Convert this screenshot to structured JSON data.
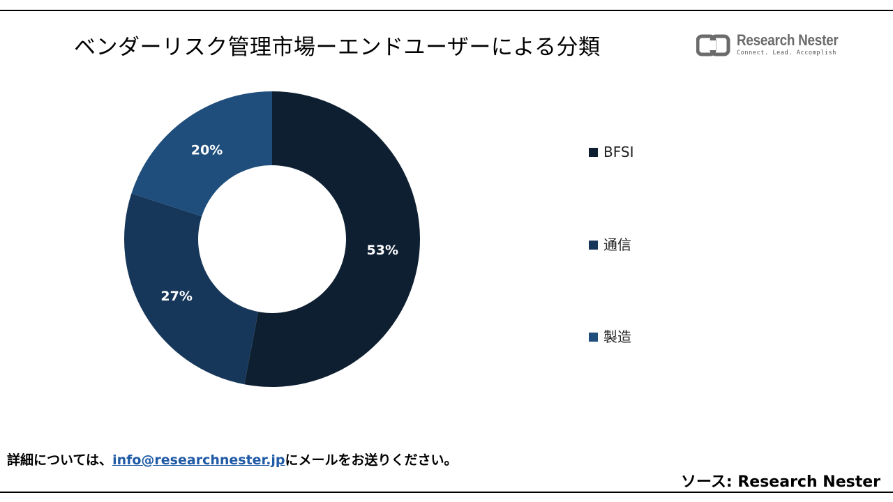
{
  "header": {
    "title": "ベンダーリスク管理市場ーエンドユーザーによる分類"
  },
  "logo": {
    "name": "Research Nester",
    "tagline": "Connect. Lead. Accomplish",
    "icon": "research-nester-logo-icon"
  },
  "chart_data": {
    "type": "pie",
    "donut": true,
    "title": "ベンダーリスク管理市場ーエンドユーザーによる分類",
    "categories": [
      "BFSI",
      "通信",
      "製造"
    ],
    "values": [
      53,
      27,
      20
    ],
    "data_labels": [
      "53%",
      "27%",
      "20%"
    ],
    "colors": [
      "#0e1f31",
      "#17375a",
      "#1f4e7c"
    ],
    "legend_position": "right"
  },
  "footer": {
    "note_prefix": "詳細については、",
    "email": "info@researchnester.jp",
    "note_suffix": "にメールをお送りください。",
    "source": "ソース: Research Nester"
  }
}
